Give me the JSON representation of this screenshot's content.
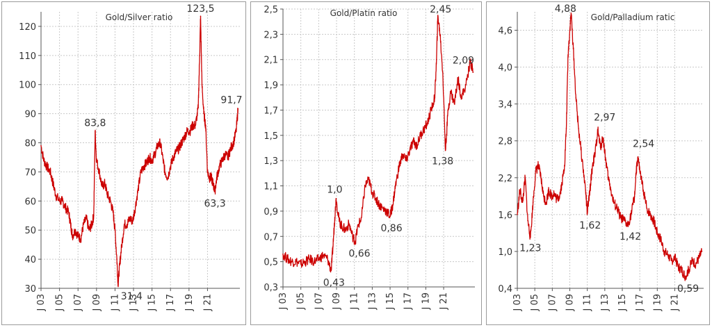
{
  "chart_data": [
    {
      "type": "line",
      "title": "Gold/Silver ratio",
      "xlabel": "",
      "ylabel": "",
      "ylim": [
        30,
        125
      ],
      "yticks": [
        30,
        40,
        50,
        60,
        70,
        80,
        90,
        100,
        110,
        120
      ],
      "xlim": [
        2003.0,
        2024.5
      ],
      "xticks": [
        "J 03",
        "J 05",
        "J 07",
        "J 09",
        "J 11",
        "J 13",
        "J 15",
        "J 17",
        "J 19",
        "J 21"
      ],
      "grid": true,
      "series_color": "#cc0000",
      "series": [
        {
          "x": [
            2003.0,
            2003.3,
            2003.6,
            2004.0,
            2004.3,
            2004.6,
            2005.0,
            2005.3,
            2005.6,
            2006.0,
            2006.2,
            2006.4,
            2006.7,
            2007.0,
            2007.3,
            2007.6,
            2007.9,
            2008.2,
            2008.5,
            2008.7,
            2008.85,
            2009.0,
            2009.3,
            2009.6,
            2009.9,
            2010.2,
            2010.5,
            2010.8,
            2011.0,
            2011.2,
            2011.33,
            2011.5,
            2011.7,
            2012.0,
            2012.3,
            2012.6,
            2012.9,
            2013.2,
            2013.5,
            2013.8,
            2014.1,
            2014.4,
            2014.7,
            2015.0,
            2015.3,
            2015.6,
            2015.9,
            2016.2,
            2016.4,
            2016.7,
            2017.0,
            2017.3,
            2017.6,
            2017.9,
            2018.2,
            2018.5,
            2018.8,
            2019.1,
            2019.4,
            2019.7,
            2020.0,
            2020.15,
            2020.25,
            2020.4,
            2020.6,
            2020.8,
            2021.0,
            2021.2,
            2021.4,
            2021.6,
            2021.8,
            2022.0,
            2022.3,
            2022.6,
            2022.9,
            2023.2,
            2023.5,
            2023.8,
            2024.1,
            2024.3
          ],
          "values": [
            79,
            74,
            72,
            70,
            66,
            62,
            60,
            60,
            58,
            56,
            52,
            48,
            50,
            48,
            47,
            52,
            54,
            50,
            52,
            55,
            83.8,
            74,
            70,
            65,
            66,
            62,
            60,
            56,
            50,
            40,
            31.4,
            38,
            44,
            52,
            52,
            54,
            53,
            58,
            64,
            70,
            72,
            73,
            75,
            74,
            76,
            79,
            80,
            74,
            70,
            68,
            72,
            75,
            77,
            78,
            80,
            82,
            84,
            84,
            86,
            86,
            92,
            110,
            123.5,
            100,
            90,
            86,
            70,
            68,
            68,
            66,
            63.3,
            68,
            72,
            74,
            76,
            75,
            78,
            80,
            84,
            91.7
          ]
        }
      ],
      "annotations": [
        {
          "text": "123,5",
          "x": 2020.25,
          "y": 123.5
        },
        {
          "text": "83,8",
          "x": 2008.85,
          "y": 83.8
        },
        {
          "text": "91,7",
          "x": 2024.3,
          "y": 91.7
        },
        {
          "text": "63,3",
          "x": 2021.8,
          "y": 63.3
        },
        {
          "text": "31,4",
          "x": 2011.33,
          "y": 31.4
        }
      ]
    },
    {
      "type": "line",
      "title": "Gold/Platin ratio",
      "xlabel": "",
      "ylabel": "",
      "ylim": [
        0.3,
        2.5
      ],
      "yticks": [
        "0,3",
        "0,5",
        "0,7",
        "0,9",
        "1,1",
        "1,3",
        "1,5",
        "1,7",
        "1,9",
        "2,1",
        "2,3",
        "2,5"
      ],
      "xlim": [
        2003.0,
        2024.5
      ],
      "xticks": [
        "J 03",
        "J 05",
        "J 07",
        "J 09",
        "J 11",
        "J 13",
        "J 15",
        "J 17",
        "J 19",
        "J 21"
      ],
      "grid": true,
      "series_color": "#cc0000",
      "series": [
        {
          "x": [
            2003.0,
            2003.5,
            2004.0,
            2004.5,
            2005.0,
            2005.5,
            2006.0,
            2006.5,
            2007.0,
            2007.5,
            2008.0,
            2008.4,
            2008.6,
            2008.8,
            2008.95,
            2009.3,
            2009.6,
            2010.0,
            2010.4,
            2010.8,
            2011.1,
            2011.4,
            2011.8,
            2012.2,
            2012.6,
            2013.0,
            2013.4,
            2013.8,
            2014.2,
            2014.6,
            2015.0,
            2015.3,
            2015.6,
            2016.0,
            2016.4,
            2016.8,
            2017.2,
            2017.6,
            2018.0,
            2018.4,
            2018.8,
            2019.2,
            2019.6,
            2020.0,
            2020.2,
            2020.35,
            2020.6,
            2020.9,
            2021.2,
            2021.5,
            2021.8,
            2022.2,
            2022.6,
            2023.0,
            2023.5,
            2024.0,
            2024.3
          ],
          "values": [
            0.56,
            0.52,
            0.5,
            0.5,
            0.48,
            0.5,
            0.52,
            0.5,
            0.52,
            0.55,
            0.52,
            0.43,
            0.62,
            0.85,
            1.0,
            0.82,
            0.78,
            0.75,
            0.8,
            0.7,
            0.66,
            0.78,
            0.85,
            1.1,
            1.15,
            1.05,
            1.0,
            0.95,
            0.92,
            0.9,
            0.86,
            0.95,
            1.1,
            1.25,
            1.35,
            1.3,
            1.38,
            1.45,
            1.42,
            1.5,
            1.55,
            1.6,
            1.7,
            1.8,
            2.1,
            2.45,
            2.3,
            2.0,
            1.38,
            1.7,
            1.85,
            1.75,
            1.95,
            1.8,
            1.9,
            2.09,
            2.0
          ]
        }
      ],
      "annotations": [
        {
          "text": "2,45",
          "x": 2020.35,
          "y": 2.45
        },
        {
          "text": "2,09",
          "x": 2022.9,
          "y": 2.09
        },
        {
          "text": "1,0",
          "x": 2008.95,
          "y": 1.0
        },
        {
          "text": "0,66",
          "x": 2011.1,
          "y": 0.66
        },
        {
          "text": "0,86",
          "x": 2015.0,
          "y": 0.86
        },
        {
          "text": "1,38",
          "x": 2021.2,
          "y": 1.38
        },
        {
          "text": "0,43",
          "x": 2008.4,
          "y": 0.43
        }
      ]
    },
    {
      "type": "line",
      "title": "Gold/Palladium ratic",
      "xlabel": "",
      "ylabel": "",
      "ylim": [
        0.4,
        4.9
      ],
      "yticks": [
        "0,4",
        "1,0",
        "1,6",
        "2,2",
        "2,8",
        "3,4",
        "4,0",
        "4,6"
      ],
      "xlim": [
        2003.0,
        2024.3
      ],
      "xticks": [
        "J 03",
        "J 05",
        "J 07",
        "J 09",
        "J 11",
        "J 13",
        "J 15",
        "J 17",
        "J 19",
        "J 21"
      ],
      "grid": true,
      "series_color": "#cc0000",
      "series": [
        {
          "x": [
            2003.0,
            2003.3,
            2003.6,
            2003.9,
            2004.2,
            2004.5,
            2004.8,
            2005.1,
            2005.4,
            2005.7,
            2006.0,
            2006.3,
            2006.6,
            2006.9,
            2007.2,
            2007.5,
            2007.8,
            2008.1,
            2008.4,
            2008.6,
            2008.8,
            2009.0,
            2009.15,
            2009.4,
            2009.7,
            2010.0,
            2010.4,
            2010.8,
            2011.0,
            2011.3,
            2011.6,
            2011.9,
            2012.2,
            2012.5,
            2012.8,
            2013.1,
            2013.4,
            2013.7,
            2014.0,
            2014.4,
            2014.8,
            2015.2,
            2015.6,
            2016.0,
            2016.4,
            2016.6,
            2016.8,
            2017.0,
            2017.4,
            2017.8,
            2018.2,
            2018.6,
            2019.0,
            2019.4,
            2019.8,
            2020.2,
            2020.6,
            2021.0,
            2021.4,
            2021.8,
            2022.2,
            2022.6,
            2023.0,
            2023.4,
            2023.8,
            2024.1
          ],
          "values": [
            1.6,
            2.0,
            1.8,
            2.2,
            1.5,
            1.23,
            1.8,
            2.3,
            2.4,
            2.2,
            1.9,
            1.8,
            2.0,
            1.9,
            1.95,
            1.85,
            1.9,
            2.1,
            2.4,
            3.0,
            4.2,
            4.6,
            4.88,
            4.3,
            3.5,
            3.0,
            2.5,
            2.0,
            1.62,
            2.0,
            2.4,
            2.6,
            2.97,
            2.7,
            2.85,
            2.5,
            2.2,
            2.0,
            1.8,
            1.7,
            1.55,
            1.5,
            1.42,
            1.6,
            1.9,
            2.3,
            2.54,
            2.3,
            2.0,
            1.7,
            1.6,
            1.5,
            1.3,
            1.2,
            1.0,
            0.95,
            0.85,
            0.9,
            0.75,
            0.7,
            0.59,
            0.7,
            0.85,
            0.8,
            0.9,
            1.0
          ]
        }
      ],
      "annotations": [
        {
          "text": "4,88",
          "x": 2009.15,
          "y": 4.88
        },
        {
          "text": "2,97",
          "x": 2012.2,
          "y": 2.97
        },
        {
          "text": "2,54",
          "x": 2016.8,
          "y": 2.54
        },
        {
          "text": "1,62",
          "x": 2011.0,
          "y": 1.62
        },
        {
          "text": "1,42",
          "x": 2015.6,
          "y": 1.42
        },
        {
          "text": "1,23",
          "x": 2004.5,
          "y": 1.23
        },
        {
          "text": "0,59",
          "x": 2022.2,
          "y": 0.59
        }
      ]
    }
  ]
}
